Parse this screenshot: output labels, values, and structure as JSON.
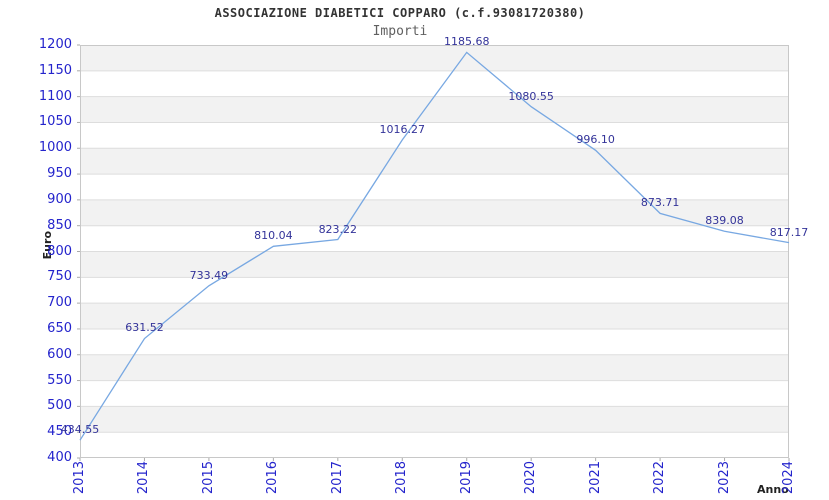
{
  "header": {
    "title": "ASSOCIAZIONE DIABETICI COPPARO (c.f.93081720380)",
    "subtitle": "Importi"
  },
  "chart_data": {
    "type": "line",
    "title": "ASSOCIAZIONE DIABETICI COPPARO (c.f.93081720380)",
    "subtitle": "Importi",
    "xlabel": "Anno",
    "ylabel": "Euro",
    "categories": [
      "2013",
      "2014",
      "2015",
      "2016",
      "2017",
      "2018",
      "2019",
      "2020",
      "2021",
      "2022",
      "2023",
      "2024"
    ],
    "values": [
      434.55,
      631.52,
      733.49,
      810.04,
      823.22,
      1016.27,
      1185.68,
      1080.55,
      996.1,
      873.71,
      839.08,
      817.17
    ],
    "point_labels": [
      "434.55",
      "631.52",
      "733.49",
      "810.04",
      "823.22",
      "1016.27",
      "1185.68",
      "1080.55",
      "996.10",
      "873.71",
      "839.08",
      "817.17"
    ],
    "ylim": [
      400,
      1200
    ],
    "ytick_step": 50,
    "grid": true,
    "alternating_bands": true,
    "legend": "none",
    "colors": {
      "line": "#78a8e2",
      "tick_label": "#2424cc",
      "data_label": "#333399",
      "band": "#f2f2f2",
      "gridline": "#dddddd",
      "plot_border": "#c8c8c8",
      "tick_mark": "#aaaaaa"
    }
  }
}
